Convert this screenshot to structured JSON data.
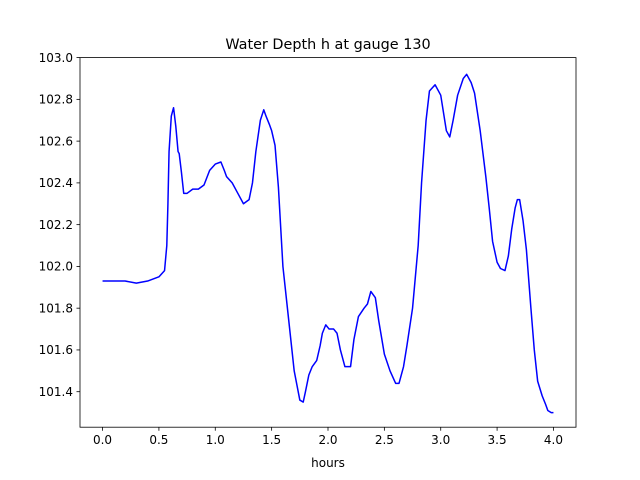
{
  "chart_data": {
    "type": "line",
    "title": "Water Depth h at gauge 130",
    "xlabel": "hours",
    "ylabel": "",
    "xlim": [
      -0.2,
      4.2
    ],
    "ylim": [
      101.23,
      103.0
    ],
    "x_ticks": [
      "0.0",
      "0.5",
      "1.0",
      "1.5",
      "2.0",
      "2.5",
      "3.0",
      "3.5",
      "4.0"
    ],
    "y_ticks": [
      "101.4",
      "101.6",
      "101.8",
      "102.0",
      "102.2",
      "102.4",
      "102.6",
      "102.8",
      "103.0"
    ],
    "grid": false,
    "line_color": "#0000ff",
    "series": [
      {
        "x": [
          0.0,
          0.1,
          0.2,
          0.3,
          0.4,
          0.5,
          0.55,
          0.57,
          0.58,
          0.59,
          0.61,
          0.63,
          0.65,
          0.67,
          0.68,
          0.7,
          0.72,
          0.75,
          0.8,
          0.85,
          0.9,
          0.95,
          1.0,
          1.05,
          1.08,
          1.1,
          1.15,
          1.2,
          1.25,
          1.3,
          1.33,
          1.36,
          1.4,
          1.43,
          1.45,
          1.48,
          1.5,
          1.53,
          1.56,
          1.6,
          1.65,
          1.7,
          1.75,
          1.78,
          1.8,
          1.83,
          1.86,
          1.9,
          1.93,
          1.95,
          1.98,
          2.01,
          2.05,
          2.08,
          2.11,
          2.15,
          2.2,
          2.23,
          2.27,
          2.32,
          2.35,
          2.38,
          2.42,
          2.45,
          2.5,
          2.55,
          2.6,
          2.63,
          2.67,
          2.7,
          2.75,
          2.8,
          2.83,
          2.87,
          2.9,
          2.95,
          3.0,
          3.05,
          3.08,
          3.11,
          3.15,
          3.2,
          3.23,
          3.27,
          3.3,
          3.35,
          3.4,
          3.43,
          3.46,
          3.5,
          3.53,
          3.57,
          3.6,
          3.63,
          3.66,
          3.68,
          3.7,
          3.73,
          3.76,
          3.8,
          3.83,
          3.86,
          3.9,
          3.93,
          3.95,
          3.98,
          4.0
        ],
        "y": [
          101.93,
          101.93,
          101.93,
          101.92,
          101.93,
          101.95,
          101.98,
          102.1,
          102.3,
          102.55,
          102.72,
          102.76,
          102.67,
          102.55,
          102.54,
          102.45,
          102.35,
          102.35,
          102.37,
          102.37,
          102.39,
          102.46,
          102.49,
          102.5,
          102.46,
          102.43,
          102.4,
          102.35,
          102.3,
          102.32,
          102.4,
          102.55,
          102.7,
          102.75,
          102.72,
          102.68,
          102.65,
          102.58,
          102.38,
          102.0,
          101.75,
          101.5,
          101.36,
          101.35,
          101.4,
          101.48,
          101.52,
          101.55,
          101.62,
          101.68,
          101.72,
          101.7,
          101.7,
          101.68,
          101.6,
          101.52,
          101.52,
          101.65,
          101.76,
          101.8,
          101.82,
          101.88,
          101.85,
          101.74,
          101.58,
          101.5,
          101.44,
          101.44,
          101.52,
          101.62,
          101.8,
          102.1,
          102.4,
          102.7,
          102.84,
          102.87,
          102.82,
          102.65,
          102.62,
          102.7,
          102.82,
          102.9,
          102.92,
          102.88,
          102.83,
          102.65,
          102.43,
          102.28,
          102.12,
          102.02,
          101.99,
          101.98,
          102.05,
          102.18,
          102.28,
          102.32,
          102.32,
          102.22,
          102.08,
          101.8,
          101.6,
          101.45,
          101.38,
          101.34,
          101.31,
          101.3,
          101.3
        ]
      }
    ]
  }
}
